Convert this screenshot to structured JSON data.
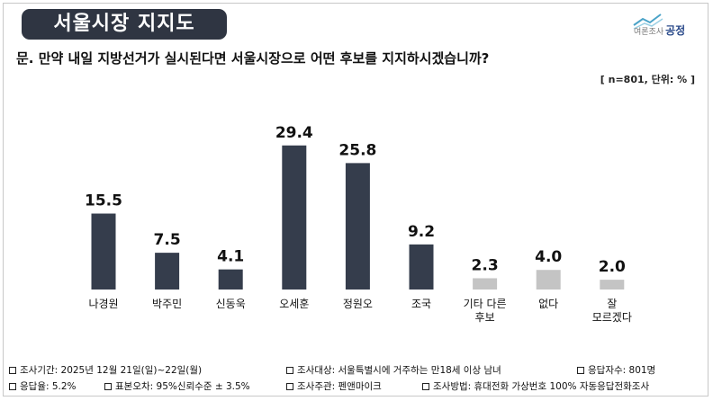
{
  "header": {
    "title": "서울시장 지지도",
    "logo_small": "여론조사",
    "logo_brand": "공정"
  },
  "question": "문. 만약 내일 지방선거가 실시된다면 서울시장으로 어떤 후보를 지지하시겠습니까?",
  "unit_note": "[ n=801, 단위: % ]",
  "colors": {
    "primary_bar": "#353d4c",
    "other_bar": "#c4c4c4",
    "badge": "#2f3542"
  },
  "chart_data": {
    "type": "bar",
    "categories": [
      "나경원",
      "박주민",
      "신동욱",
      "오세훈",
      "정원오",
      "조국",
      "기타 다른 후보",
      "없다",
      "잘 모르겠다"
    ],
    "values": [
      15.5,
      7.5,
      4.1,
      29.4,
      25.8,
      9.2,
      2.3,
      4.0,
      2.0
    ],
    "value_labels": [
      "15.5",
      "7.5",
      "4.1",
      "29.4",
      "25.8",
      "9.2",
      "2.3",
      "4.0",
      "2.0"
    ],
    "bar_color_groups": [
      "primary",
      "primary",
      "primary",
      "primary",
      "primary",
      "primary",
      "other",
      "other",
      "other"
    ],
    "title": "",
    "xlabel": "",
    "ylabel": "",
    "ylim": [
      0,
      30
    ],
    "grid": false,
    "legend": "none"
  },
  "footer": {
    "period": "조사기간: 2025년 12월 21일(일)~22일(월)",
    "target": "조사대상: 서울특별시에 거주하는 만18세 이상 남녀",
    "respondents": "응답자수: 801명",
    "response_rate": "응답율: 5.2%",
    "margin": "표본오차: 95%신뢰수준 ± 3.5%",
    "host": "조사주관: 펜앤마이크",
    "method": "조사방법: 휴대전화 가상번호 100% 자동응답전화조사"
  }
}
